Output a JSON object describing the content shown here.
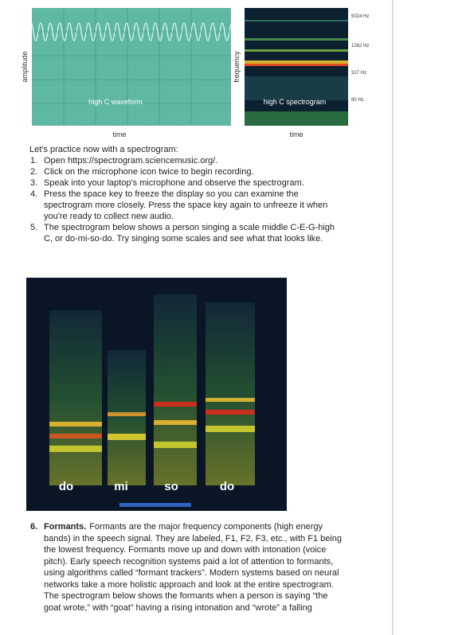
{
  "figures": {
    "waveform": {
      "y_label": "amplitude",
      "caption": "high C waveform",
      "x_label": "time"
    },
    "spectrogram": {
      "y_label": "frequency",
      "freq_labels": [
        "5024 Hz",
        "1262 Hz",
        "317 Hz",
        "80 Hz"
      ],
      "caption": "high C spectrogram",
      "x_label": "time"
    },
    "scale_spectrogram": {
      "syllables": [
        "do",
        "mi",
        "so",
        "do"
      ]
    }
  },
  "intro": "Let's practice now with a spectrogram:",
  "steps": [
    {
      "number": "1.",
      "lines": [
        "Open https://spectrogram.sciencemusic.org/."
      ]
    },
    {
      "number": "2.",
      "lines": [
        "Click on the microphone icon twice to begin recording."
      ]
    },
    {
      "number": "3.",
      "lines": [
        "Speak into your laptop's microphone and observe the spectrogram."
      ]
    },
    {
      "number": "4.",
      "lines": [
        "Press the space key to freeze the display so you can examine the",
        "spectrogram more closely. Press the space key again to unfreeze it when",
        "you're ready to collect new audio."
      ]
    },
    {
      "number": "5.",
      "lines": [
        "The spectrogram below shows a person singing a scale middle C-E-G-high",
        "C, or do-mi-so-do. Try singing some scales and see what that looks like."
      ]
    }
  ],
  "formants": {
    "number": "6.",
    "heading": "Formants.",
    "lines": [
      "Formants are the major frequency components (high energy",
      "bands) in the speech signal. They are labeled, F1, F2, F3, etc., with F1 being",
      "the lowest frequency. Formants move up and down with intonation (voice",
      "pitch). Early speech recognition systems paid a lot of attention to formants,",
      "using algorithms called “formant trackers”. Modern systems based on neural",
      "networks take a more holistic approach and look at the entire spectrogram.",
      "The spectrogram below shows the formants when a person is saying “the",
      "goat wrote,” with “goat” having a rising intonation and “wrote” a falling"
    ]
  }
}
